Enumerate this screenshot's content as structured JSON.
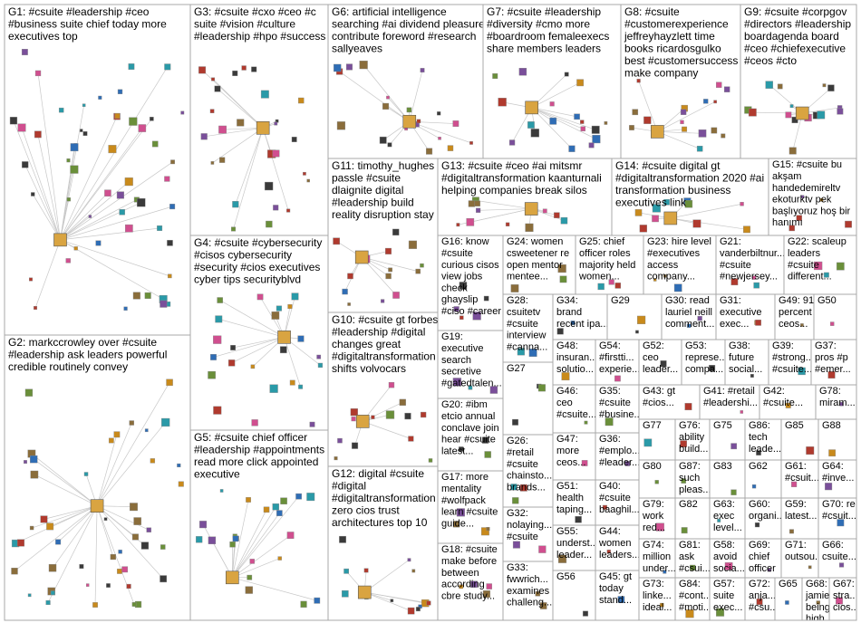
{
  "groups": [
    {
      "lines": [
        "G1: #csuite #leadership #ceo",
        "#business suite chief today more",
        "executives top"
      ]
    },
    {
      "lines": [
        "G2: markccrowley over #csuite",
        "#leadership ask leaders powerful",
        "credible routinely convey"
      ]
    },
    {
      "lines": [
        "G3: #csuite #cxo #ceo #c",
        "suite #vision #culture",
        "#leadership #hpo #success"
      ]
    },
    {
      "lines": [
        "G4: #csuite #cybersecurity",
        "#cisos cybersecurity",
        "#security #cios executives",
        "cyber tips securityblvd"
      ]
    },
    {
      "lines": [
        "G5: #csuite chief officer",
        "#leadership #appointments",
        "read more click appointed",
        "executive"
      ]
    },
    {
      "lines": [
        "G6: artificial intelligence",
        "searching #ai dividend pleasure",
        "contribute foreword #research",
        "sallyeaves"
      ]
    },
    {
      "lines": [
        "G7: #csuite #leadership",
        "#diversity #cmo more",
        "#boardroom femaleexecs",
        "share members leaders"
      ]
    },
    {
      "lines": [
        "G8: #csuite",
        "#customerexperience",
        "jeffreyhayzlett time",
        "books ricardosgulko",
        "best #customersuccess",
        "make company"
      ]
    },
    {
      "lines": [
        "G9: #csuite #corpgov",
        "#directors #leadership",
        "boardagenda board",
        "#ceo #chiefexecutive",
        "#ceos #cto"
      ]
    },
    {
      "lines": [
        "G11: timothy_hughes",
        "passle #csuite",
        "dlaignite digital",
        "#leadership build",
        "reality disruption stay"
      ]
    },
    {
      "lines": [
        "G10: #csuite gt forbes",
        "#leadership #digital",
        "changes great",
        "#digitaltransformation",
        "shifts volvocars"
      ]
    },
    {
      "lines": [
        "G12: digital #csuite",
        "#digital",
        "#digitaltransformation",
        "zero cios trust",
        "architectures top 10"
      ]
    },
    {
      "lines": [
        "G13: #csuite #ceo #ai mitsmr",
        "#digitaltransformation kaanturnali",
        "helping companies break silos"
      ]
    },
    {
      "lines": [
        "G14: #csuite digital gt",
        "#digitaltransformation 2020 #ai",
        "transformation business",
        "executives link"
      ]
    },
    {
      "lines": [
        "G15: #csuite bu",
        "akşam",
        "handedemireltv",
        "ekoturktv pek",
        "başlıyoruz hoş bir",
        "hanımı"
      ]
    },
    {
      "lines": [
        "G16: know",
        "#csuite",
        "curious cisos",
        "view jobs",
        "check",
        "ghayslip",
        "#ciso #career"
      ]
    },
    {
      "lines": [
        "G19:",
        "executive",
        "search",
        "secretive",
        "#gatedtalen..."
      ]
    },
    {
      "lines": [
        "G20: #ibm",
        "etcio annual",
        "conclave join",
        "hear #csuite",
        "latest..."
      ]
    },
    {
      "lines": [
        "G17: more",
        "mentality",
        "#wolfpack",
        "learn #csuite",
        "guide..."
      ]
    },
    {
      "lines": [
        "G18: #csuite",
        "make before",
        "between",
        "according",
        "cbre study..."
      ]
    },
    {
      "lines": [
        "G24: women",
        "csweetener re",
        "open mentor",
        "mentee..."
      ]
    },
    {
      "lines": [
        "G25: chief",
        "officer roles",
        "majority held",
        "women..."
      ]
    },
    {
      "lines": [
        "G23: hire level",
        "#executives",
        "access",
        "company..."
      ]
    },
    {
      "lines": [
        "G21:",
        "vanderbiltnur...",
        "#csuite",
        "#newjersey..."
      ]
    },
    {
      "lines": [
        "G22: scaleup",
        "leaders",
        "#csuite",
        "different..."
      ]
    },
    {
      "lines": [
        "G28:",
        "csuitetv",
        "#csuite",
        "interview",
        "#canna..."
      ]
    },
    {
      "lines": [
        "G27"
      ]
    },
    {
      "lines": [
        "G26:",
        "#retail",
        "#csuite",
        "chainsto...",
        "brands..."
      ]
    },
    {
      "lines": [
        "G32:",
        "nolaying...",
        "#csuite"
      ]
    },
    {
      "lines": [
        "G33:",
        "fwwrich...",
        "examines",
        "challeng..."
      ]
    },
    {
      "lines": [
        "G34:",
        "brand",
        "recent ipa..."
      ]
    },
    {
      "lines": [
        "G29"
      ]
    },
    {
      "lines": [
        "G30: read",
        "lauriel neill",
        "comment..."
      ]
    },
    {
      "lines": [
        "G31:",
        "executive",
        "exec..."
      ]
    },
    {
      "lines": [
        "G49: 91",
        "percent",
        "ceos..."
      ]
    },
    {
      "lines": [
        "G50"
      ]
    },
    {
      "lines": [
        "G48:",
        "insuran...",
        "solutio..."
      ]
    },
    {
      "lines": [
        "G54:",
        "#firstti...",
        "experie..."
      ]
    },
    {
      "lines": [
        "G52:",
        "ceo",
        "leader..."
      ]
    },
    {
      "lines": [
        "G53:",
        "represe...",
        "compa..."
      ]
    },
    {
      "lines": [
        "G38:",
        "future",
        "social..."
      ]
    },
    {
      "lines": [
        "G39:",
        "#strong...",
        "#csuite..."
      ]
    },
    {
      "lines": [
        "G37:",
        "pros #p",
        "#emer..."
      ]
    },
    {
      "lines": [
        "G46:",
        "ceo",
        "#csuite..."
      ]
    },
    {
      "lines": [
        "G35:",
        "#csuite",
        "#busine..."
      ]
    },
    {
      "lines": [
        "G43: gt",
        "#cios..."
      ]
    },
    {
      "lines": [
        "G41: #retail",
        "#leadershi..."
      ]
    },
    {
      "lines": [
        "G42:",
        "#csuite..."
      ]
    },
    {
      "lines": [
        "G78:",
        "miram..."
      ]
    },
    {
      "lines": [
        "G47:",
        "more",
        "ceos..."
      ]
    },
    {
      "lines": [
        "G36:",
        "#emplo...",
        "#leader..."
      ]
    },
    {
      "lines": [
        "G77"
      ]
    },
    {
      "lines": [
        "G76:",
        "ability",
        "build..."
      ]
    },
    {
      "lines": [
        "G75"
      ]
    },
    {
      "lines": [
        "G86:",
        "tech",
        "leade..."
      ]
    },
    {
      "lines": [
        "G85"
      ]
    },
    {
      "lines": [
        "G88"
      ]
    },
    {
      "lines": [
        "G51:",
        "health",
        "taping..."
      ]
    },
    {
      "lines": [
        "G40:",
        "#csuite",
        "baaghil..."
      ]
    },
    {
      "lines": [
        "G80"
      ]
    },
    {
      "lines": [
        "G87:",
        "such",
        "pleas..."
      ]
    },
    {
      "lines": [
        "G83"
      ]
    },
    {
      "lines": [
        "G62"
      ]
    },
    {
      "lines": [
        "G61:",
        "#csuit..."
      ]
    },
    {
      "lines": [
        "G64:",
        "#inve..."
      ]
    },
    {
      "lines": [
        "G55:",
        "underst...",
        "leader..."
      ]
    },
    {
      "lines": [
        "G44:",
        "women",
        "leaders..."
      ]
    },
    {
      "lines": [
        "G79:",
        "work",
        "red..."
      ]
    },
    {
      "lines": [
        "G82"
      ]
    },
    {
      "lines": [
        "G63:",
        "exec",
        "level..."
      ]
    },
    {
      "lines": [
        "G60:",
        "organi..."
      ]
    },
    {
      "lines": [
        "G59:",
        "latest..."
      ]
    },
    {
      "lines": [
        "G70: re",
        "#csuit..."
      ]
    },
    {
      "lines": [
        "G74:",
        "million",
        "under..."
      ]
    },
    {
      "lines": [
        "G81:",
        "ask",
        "#csui..."
      ]
    },
    {
      "lines": [
        "G58:",
        "avoid",
        "socia..."
      ]
    },
    {
      "lines": [
        "G69:",
        "chief",
        "officer"
      ]
    },
    {
      "lines": [
        "G71:",
        "outsou..."
      ]
    },
    {
      "lines": [
        "G66:",
        "csuite..."
      ]
    },
    {
      "lines": [
        "G56"
      ]
    },
    {
      "lines": [
        "G45: gt",
        "today",
        "stand..."
      ]
    },
    {
      "lines": [
        "G73:",
        "linke...",
        "ideal..."
      ]
    },
    {
      "lines": [
        "G84:",
        "#cont...",
        "#moti..."
      ]
    },
    {
      "lines": [
        "G57:",
        "suite",
        "exec..."
      ]
    },
    {
      "lines": [
        "G72:",
        "anja...",
        "#csu..."
      ]
    },
    {
      "lines": [
        "G65"
      ]
    },
    {
      "lines": [
        "G68:",
        "jamies",
        "beingsuc...",
        "high..."
      ]
    },
    {
      "lines": [
        "G67:",
        "stra...",
        "cios..."
      ]
    }
  ]
}
